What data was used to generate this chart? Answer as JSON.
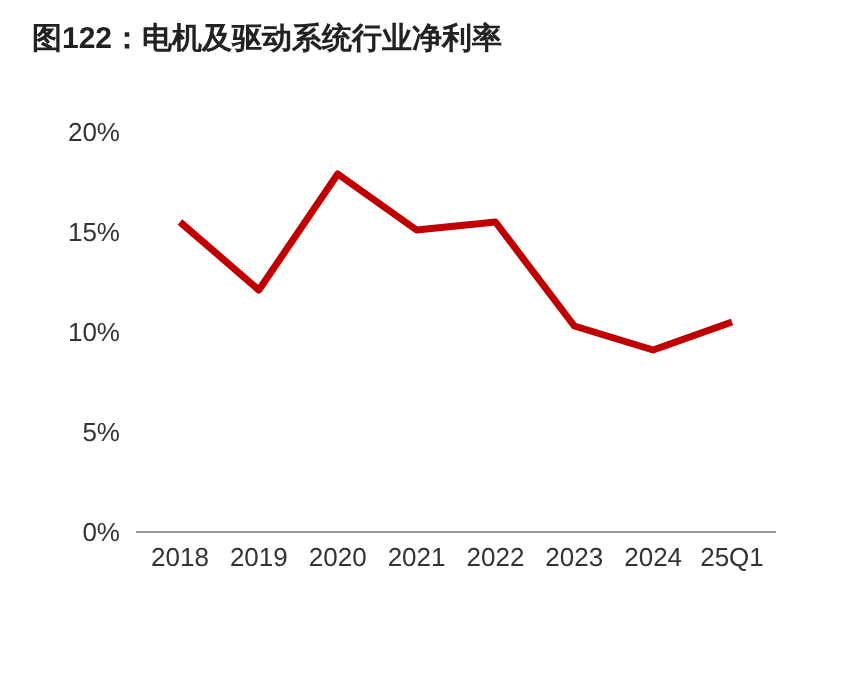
{
  "chart_data": {
    "type": "line",
    "title": "图122：电机及驱动系统行业净利率",
    "categories": [
      "2018",
      "2019",
      "2020",
      "2021",
      "2022",
      "2023",
      "2024",
      "25Q1"
    ],
    "series": [
      {
        "color": "#c00000",
        "values": [
          15.5,
          12.1,
          17.9,
          15.1,
          15.5,
          10.3,
          9.1,
          10.5
        ]
      }
    ],
    "ylim": [
      0,
      20
    ],
    "yticks": [
      {
        "value": 0,
        "label": "0%"
      },
      {
        "value": 5,
        "label": "5%"
      },
      {
        "value": 10,
        "label": "10%"
      },
      {
        "value": 15,
        "label": "15%"
      },
      {
        "value": 20,
        "label": "20%"
      }
    ],
    "grid": false,
    "marker": "none",
    "line_style": "solid"
  }
}
